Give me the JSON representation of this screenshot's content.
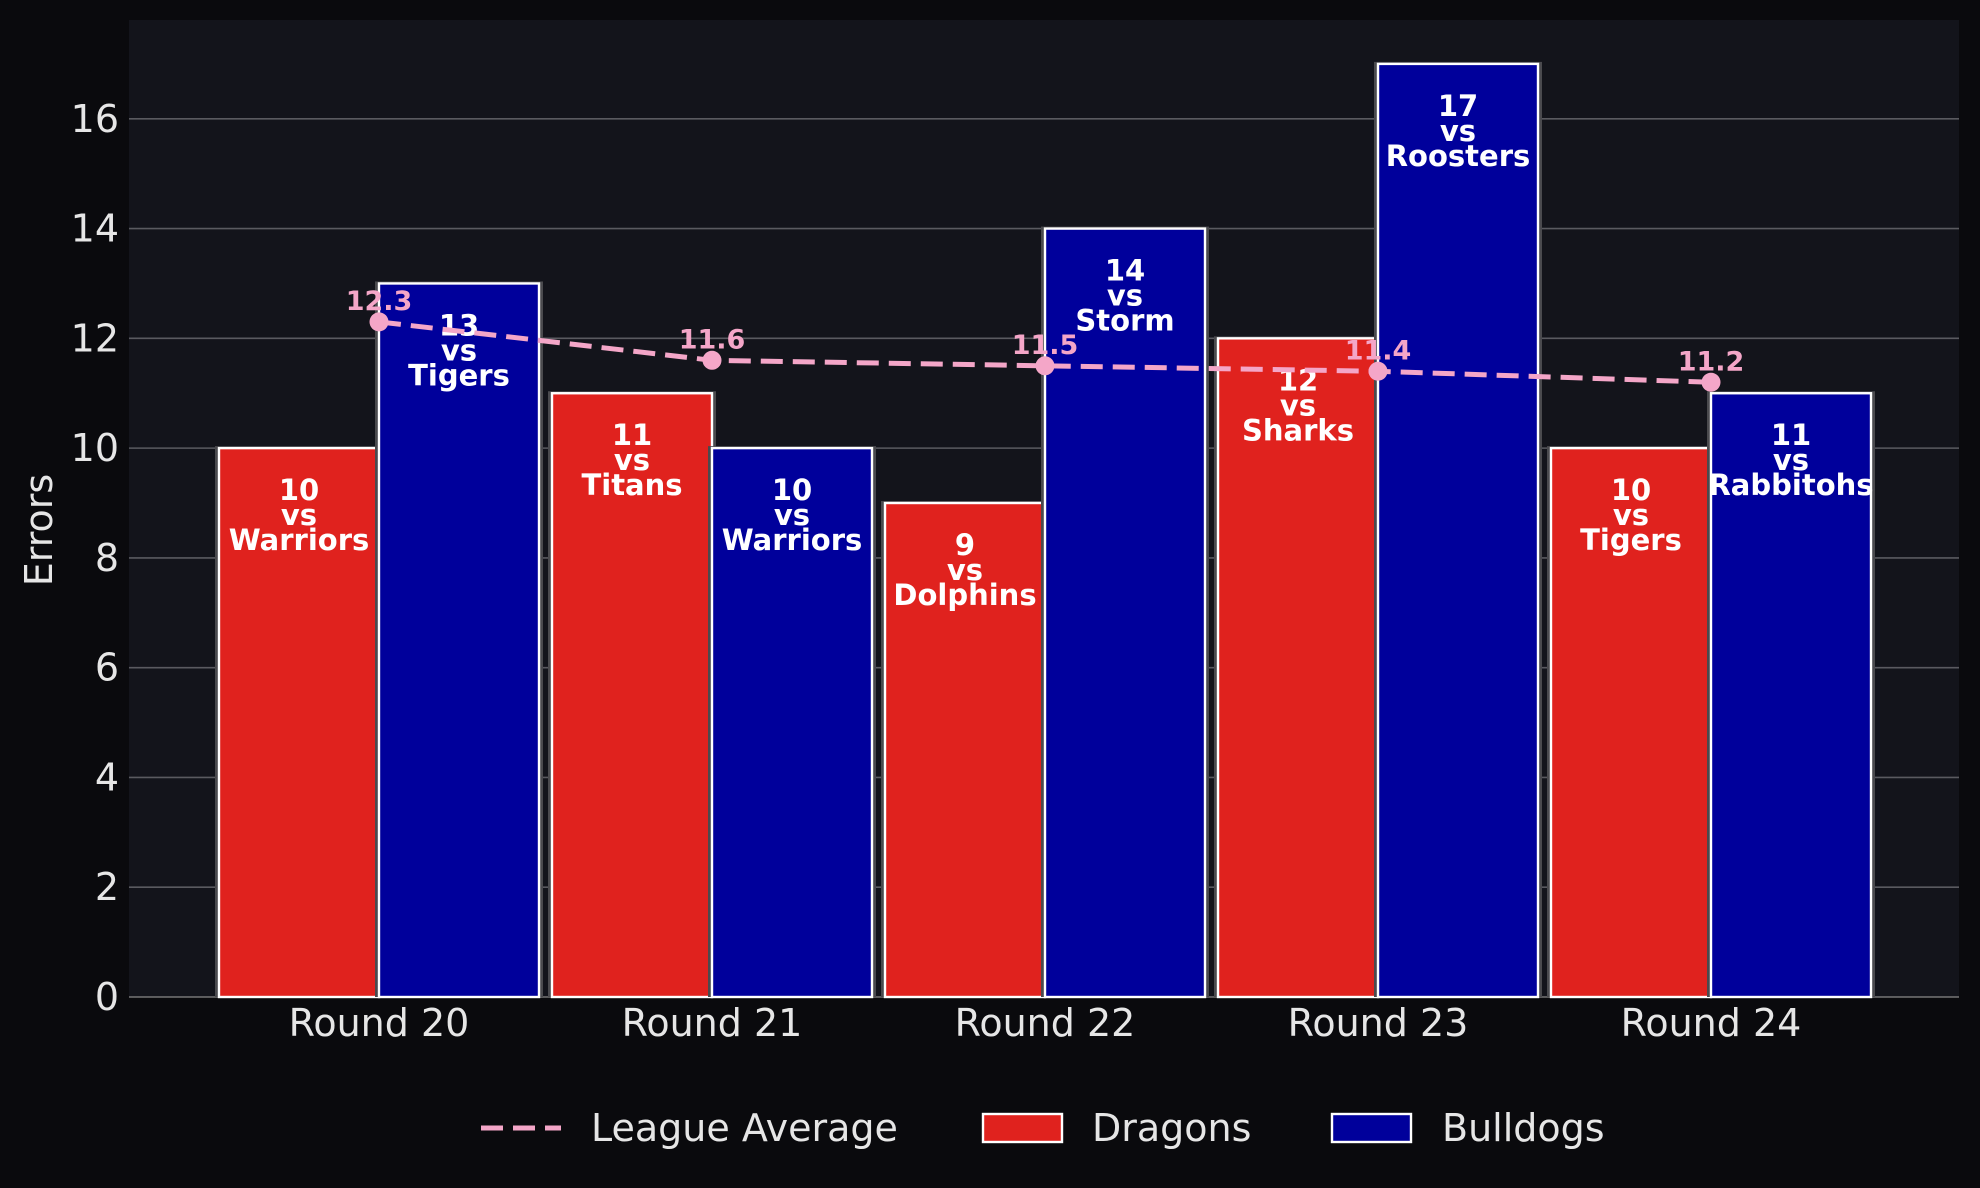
{
  "chart_data": {
    "type": "bar",
    "title": "",
    "xlabel": "",
    "ylabel": "Errors",
    "ylim": [
      0,
      17.8
    ],
    "yticks": [
      0,
      2,
      4,
      6,
      8,
      10,
      12,
      14,
      16
    ],
    "grid": "horizontal",
    "legend_position": "bottom-center",
    "categories": [
      "Round 20",
      "Round 21",
      "Round 22",
      "Round 23",
      "Round 24"
    ],
    "series": [
      {
        "name": "Dragons",
        "kind": "bar",
        "color": "#e0221e",
        "values": [
          10,
          11,
          9,
          12,
          10
        ],
        "opponents": [
          "Warriors",
          "Titans",
          "Dolphins",
          "Sharks",
          "Tigers"
        ]
      },
      {
        "name": "Bulldogs",
        "kind": "bar",
        "color": "#00009b",
        "values": [
          13,
          10,
          14,
          17,
          11
        ],
        "opponents": [
          "Tigers",
          "Warriors",
          "Storm",
          "Roosters",
          "Rabbitohs"
        ]
      },
      {
        "name": "League Average",
        "kind": "line",
        "style": "dashed",
        "color": "#f4a6c8",
        "values": [
          12.3,
          11.6,
          11.5,
          11.4,
          11.2
        ]
      }
    ],
    "vs_word": "vs"
  }
}
